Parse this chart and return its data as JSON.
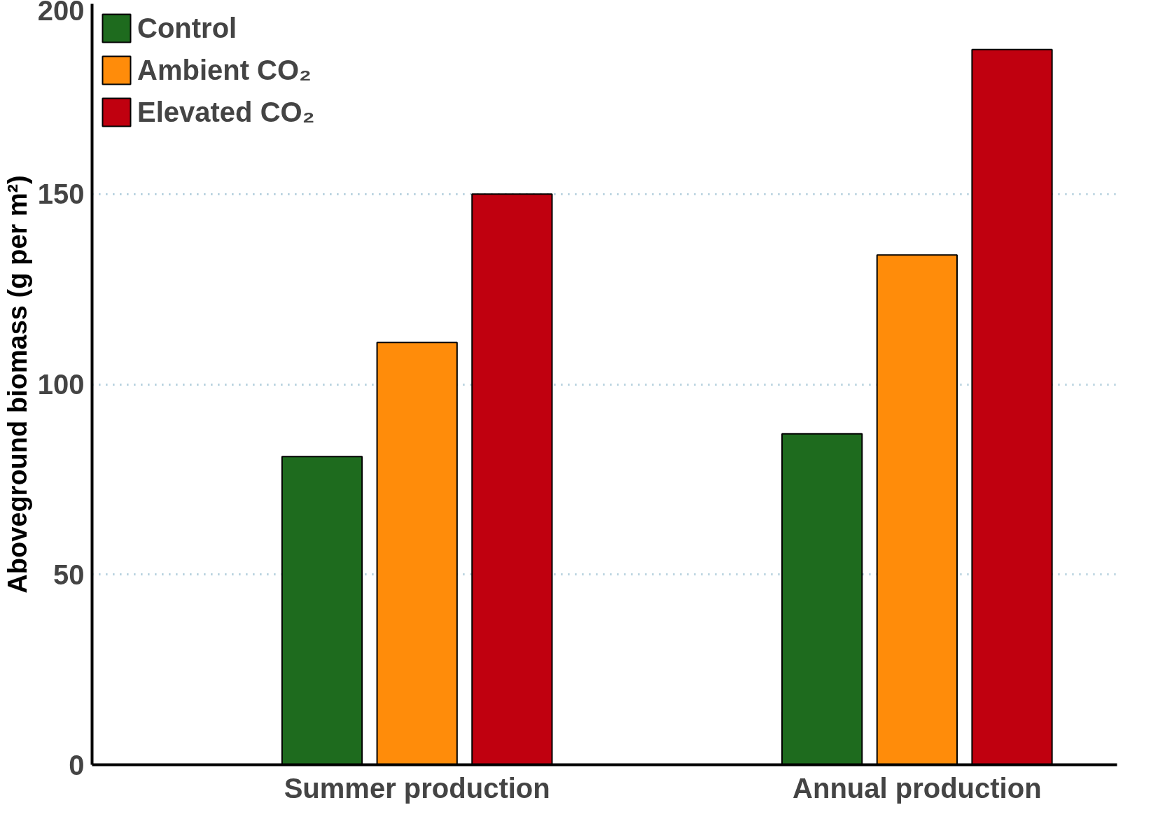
{
  "chart_data": {
    "type": "bar",
    "ylabel": "Aboveground biomass (g per m²)",
    "categories": [
      "Summer production",
      "Annual production"
    ],
    "series": [
      {
        "name": "Control",
        "color": "#1e6b1e",
        "values": [
          81,
          87
        ]
      },
      {
        "name": "Ambient CO₂",
        "color": "#ff8c0a",
        "values": [
          111,
          134
        ]
      },
      {
        "name": "Elevated CO₂",
        "color": "#c0000f",
        "values": [
          150,
          188
        ]
      }
    ],
    "ylim": [
      0,
      200
    ],
    "yticks": [
      0,
      50,
      100,
      150,
      200
    ],
    "grid": "y",
    "legend": "top left"
  }
}
